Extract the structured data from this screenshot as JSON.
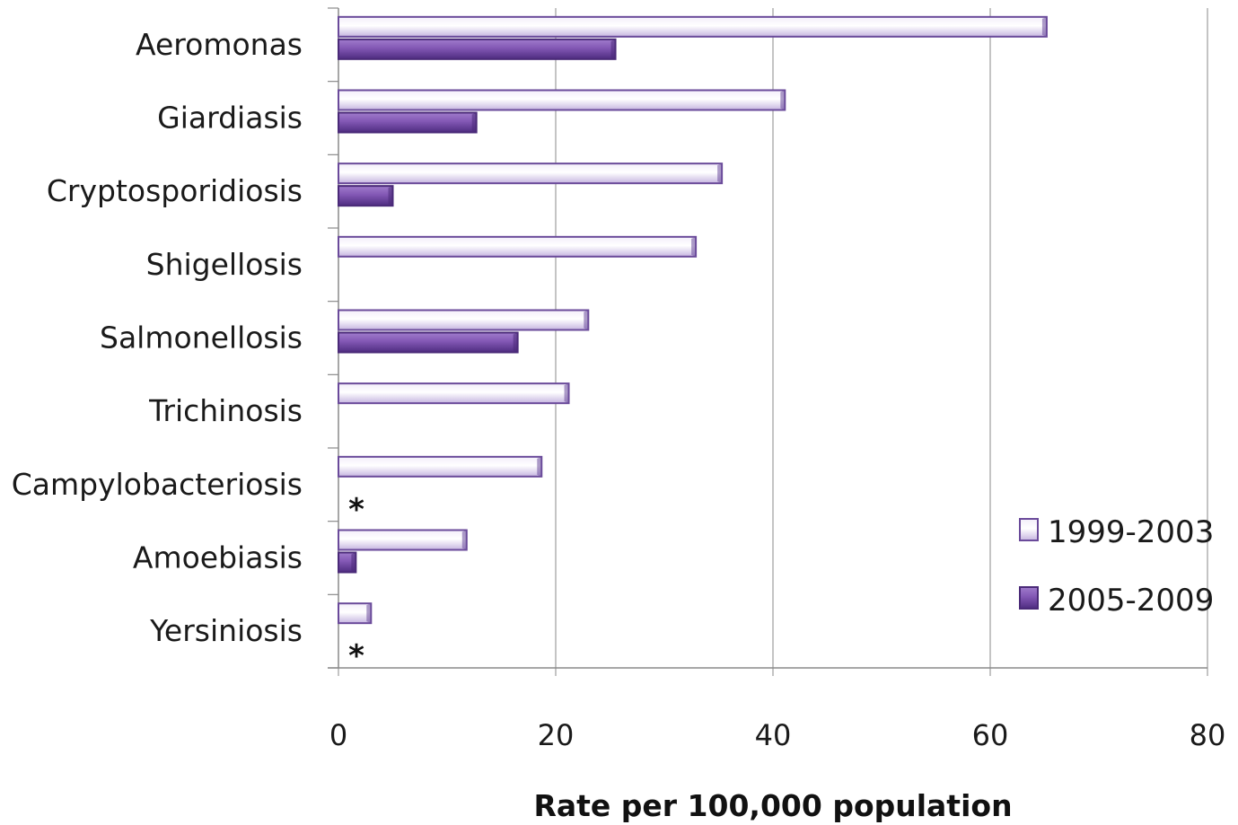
{
  "chart_data": {
    "type": "bar",
    "orientation": "horizontal",
    "categories": [
      "Aeromonas",
      "Giardiasis",
      "Cryptosporidiosis",
      "Shigellosis",
      "Salmonellosis",
      "Trichinosis",
      "Campylobacteriosis",
      "Amoebiasis",
      "Yersiniosis"
    ],
    "series": [
      {
        "name": "1999-2003",
        "color": "#d9cdec",
        "edge": "#6a4a9a",
        "values": [
          65.2,
          41.1,
          35.3,
          32.9,
          23.0,
          21.2,
          18.7,
          11.8,
          3.0
        ]
      },
      {
        "name": "2005-2009",
        "color": "#7a4fa8",
        "edge": "#4a2a78",
        "values": [
          25.5,
          12.7,
          5.0,
          null,
          16.5,
          null,
          null,
          1.6,
          null
        ]
      }
    ],
    "annotations": [
      {
        "category": "Campylobacteriosis",
        "text": "*"
      },
      {
        "category": "Yersiniosis",
        "text": "*"
      }
    ],
    "xlabel": "Rate per 100,000 population",
    "xlim": [
      0,
      80
    ],
    "xticks": [
      "0",
      "20",
      "40",
      "60",
      "80"
    ],
    "grid": "vertical",
    "legend_position": "right"
  }
}
